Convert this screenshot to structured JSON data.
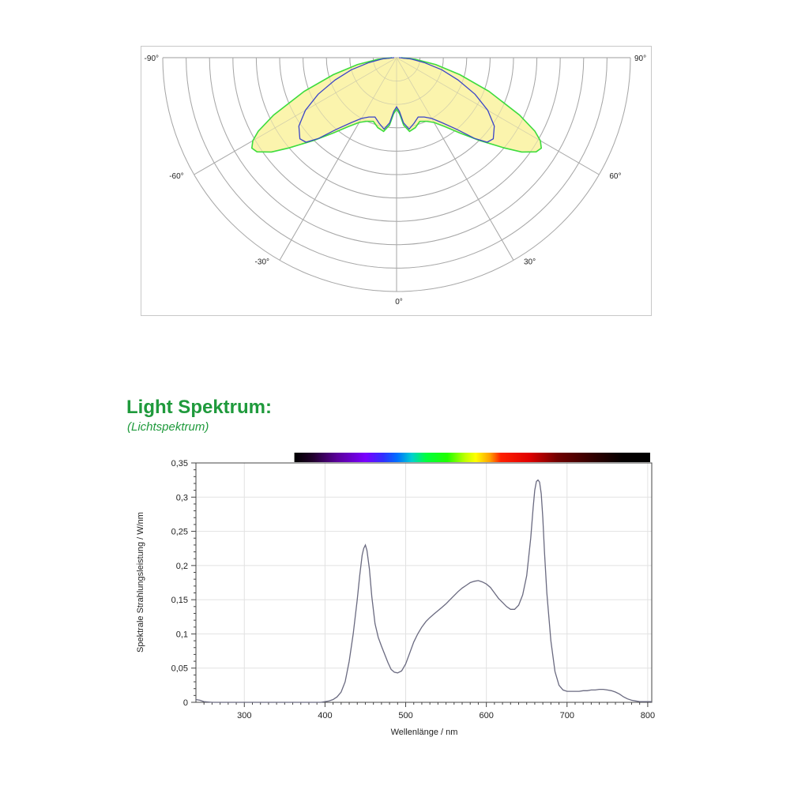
{
  "polar_panel": {
    "angle_labels": [
      {
        "angle": -90,
        "text": "-90°"
      },
      {
        "angle": 90,
        "text": "90°"
      },
      {
        "angle": -60,
        "text": "-60°"
      },
      {
        "angle": 60,
        "text": "60°"
      },
      {
        "angle": -30,
        "text": "-30°"
      },
      {
        "angle": 30,
        "text": "30°"
      },
      {
        "angle": 0,
        "text": "0°"
      }
    ],
    "fill_color": "#fbf3a4",
    "green_color": "#3ddc3d",
    "blue_color": "#3a45c8",
    "green_curve": [
      [
        -90,
        0.02
      ],
      [
        -85,
        0.08
      ],
      [
        -80,
        0.17
      ],
      [
        -75,
        0.28
      ],
      [
        -70,
        0.42
      ],
      [
        -65,
        0.58
      ],
      [
        -62,
        0.67
      ],
      [
        -60,
        0.71
      ],
      [
        -58,
        0.73
      ],
      [
        -56,
        0.72
      ],
      [
        -53,
        0.67
      ],
      [
        -50,
        0.6
      ],
      [
        -45,
        0.5
      ],
      [
        -40,
        0.42
      ],
      [
        -35,
        0.36
      ],
      [
        -30,
        0.32
      ],
      [
        -25,
        0.3
      ],
      [
        -20,
        0.29
      ],
      [
        -15,
        0.31
      ],
      [
        -10,
        0.32
      ],
      [
        -6,
        0.29
      ],
      [
        -3,
        0.24
      ],
      [
        0,
        0.22
      ],
      [
        3,
        0.24
      ],
      [
        6,
        0.29
      ],
      [
        10,
        0.32
      ],
      [
        15,
        0.31
      ],
      [
        20,
        0.29
      ],
      [
        25,
        0.3
      ],
      [
        30,
        0.32
      ],
      [
        35,
        0.36
      ],
      [
        40,
        0.42
      ],
      [
        45,
        0.5
      ],
      [
        50,
        0.6
      ],
      [
        53,
        0.67
      ],
      [
        56,
        0.72
      ],
      [
        58,
        0.73
      ],
      [
        60,
        0.71
      ],
      [
        62,
        0.67
      ],
      [
        65,
        0.58
      ],
      [
        70,
        0.42
      ],
      [
        75,
        0.28
      ],
      [
        80,
        0.17
      ],
      [
        85,
        0.08
      ],
      [
        90,
        0.02
      ]
    ],
    "blue_curve": [
      [
        -90,
        0.01
      ],
      [
        -85,
        0.06
      ],
      [
        -80,
        0.12
      ],
      [
        -75,
        0.2
      ],
      [
        -70,
        0.28
      ],
      [
        -65,
        0.37
      ],
      [
        -60,
        0.45
      ],
      [
        -55,
        0.51
      ],
      [
        -50,
        0.54
      ],
      [
        -47,
        0.53
      ],
      [
        -44,
        0.48
      ],
      [
        -40,
        0.4
      ],
      [
        -35,
        0.34
      ],
      [
        -30,
        0.3
      ],
      [
        -25,
        0.28
      ],
      [
        -20,
        0.27
      ],
      [
        -15,
        0.29
      ],
      [
        -10,
        0.31
      ],
      [
        -6,
        0.28
      ],
      [
        -3,
        0.23
      ],
      [
        0,
        0.21
      ],
      [
        3,
        0.23
      ],
      [
        6,
        0.28
      ],
      [
        10,
        0.31
      ],
      [
        15,
        0.29
      ],
      [
        20,
        0.27
      ],
      [
        25,
        0.28
      ],
      [
        30,
        0.3
      ],
      [
        35,
        0.34
      ],
      [
        40,
        0.4
      ],
      [
        44,
        0.48
      ],
      [
        47,
        0.53
      ],
      [
        50,
        0.54
      ],
      [
        55,
        0.51
      ],
      [
        60,
        0.45
      ],
      [
        65,
        0.37
      ],
      [
        70,
        0.28
      ],
      [
        75,
        0.2
      ],
      [
        80,
        0.12
      ],
      [
        85,
        0.06
      ],
      [
        90,
        0.01
      ]
    ]
  },
  "heading": {
    "title": "Light Spektrum:",
    "subtitle": "(Lichtspektrum)"
  },
  "chart_data": {
    "type": "line",
    "xlabel": "Wellenlänge / nm",
    "ylabel": "Spektrale Strahlungsleistung / W/nm",
    "xlim": [
      240,
      805
    ],
    "ylim": [
      0,
      0.35
    ],
    "x_ticks": [
      300,
      400,
      500,
      600,
      700,
      800
    ],
    "y_ticks": [
      {
        "value": 0,
        "label": "0"
      },
      {
        "value": 0.05,
        "label": "0,05"
      },
      {
        "value": 0.1,
        "label": "0,1"
      },
      {
        "value": 0.15,
        "label": "0,15"
      },
      {
        "value": 0.2,
        "label": "0,2"
      },
      {
        "value": 0.25,
        "label": "0,25"
      },
      {
        "value": 0.3,
        "label": "0,3"
      },
      {
        "value": 0.35,
        "label": "0,35"
      }
    ],
    "grid": true,
    "line_color": "#6a6a80",
    "colorbar_range": [
      362,
      803
    ],
    "series": [
      {
        "x": [
          240,
          245,
          250,
          260,
          300,
          350,
          395,
          400,
          405,
          410,
          415,
          420,
          425,
          430,
          435,
          440,
          443,
          446,
          448,
          450,
          452,
          455,
          458,
          462,
          466,
          470,
          474,
          478,
          482,
          486,
          490,
          495,
          500,
          505,
          510,
          515,
          520,
          525,
          530,
          535,
          540,
          545,
          550,
          555,
          560,
          565,
          570,
          575,
          580,
          585,
          590,
          595,
          600,
          605,
          610,
          615,
          620,
          625,
          630,
          635,
          640,
          645,
          650,
          655,
          658,
          660,
          662,
          664,
          666,
          668,
          670,
          672,
          675,
          680,
          685,
          690,
          695,
          700,
          705,
          710,
          715,
          720,
          725,
          730,
          735,
          740,
          745,
          750,
          755,
          760,
          765,
          770,
          775,
          780,
          785,
          790,
          795,
          800,
          805
        ],
        "y": [
          0.004,
          0.003,
          0.001,
          0,
          0,
          0,
          0,
          0.001,
          0.002,
          0.004,
          0.008,
          0.015,
          0.03,
          0.06,
          0.1,
          0.15,
          0.185,
          0.215,
          0.225,
          0.23,
          0.222,
          0.195,
          0.155,
          0.115,
          0.095,
          0.082,
          0.07,
          0.058,
          0.048,
          0.044,
          0.043,
          0.046,
          0.056,
          0.072,
          0.088,
          0.1,
          0.11,
          0.118,
          0.124,
          0.129,
          0.134,
          0.139,
          0.144,
          0.15,
          0.156,
          0.162,
          0.167,
          0.171,
          0.175,
          0.177,
          0.178,
          0.176,
          0.173,
          0.168,
          0.16,
          0.152,
          0.146,
          0.14,
          0.136,
          0.136,
          0.142,
          0.157,
          0.185,
          0.24,
          0.285,
          0.31,
          0.323,
          0.325,
          0.322,
          0.305,
          0.27,
          0.22,
          0.16,
          0.09,
          0.045,
          0.025,
          0.018,
          0.016,
          0.016,
          0.016,
          0.016,
          0.017,
          0.017,
          0.018,
          0.018,
          0.019,
          0.019,
          0.018,
          0.017,
          0.015,
          0.012,
          0.008,
          0.005,
          0.003,
          0.002,
          0.001,
          0.001,
          0.001,
          0.001
        ]
      }
    ]
  }
}
